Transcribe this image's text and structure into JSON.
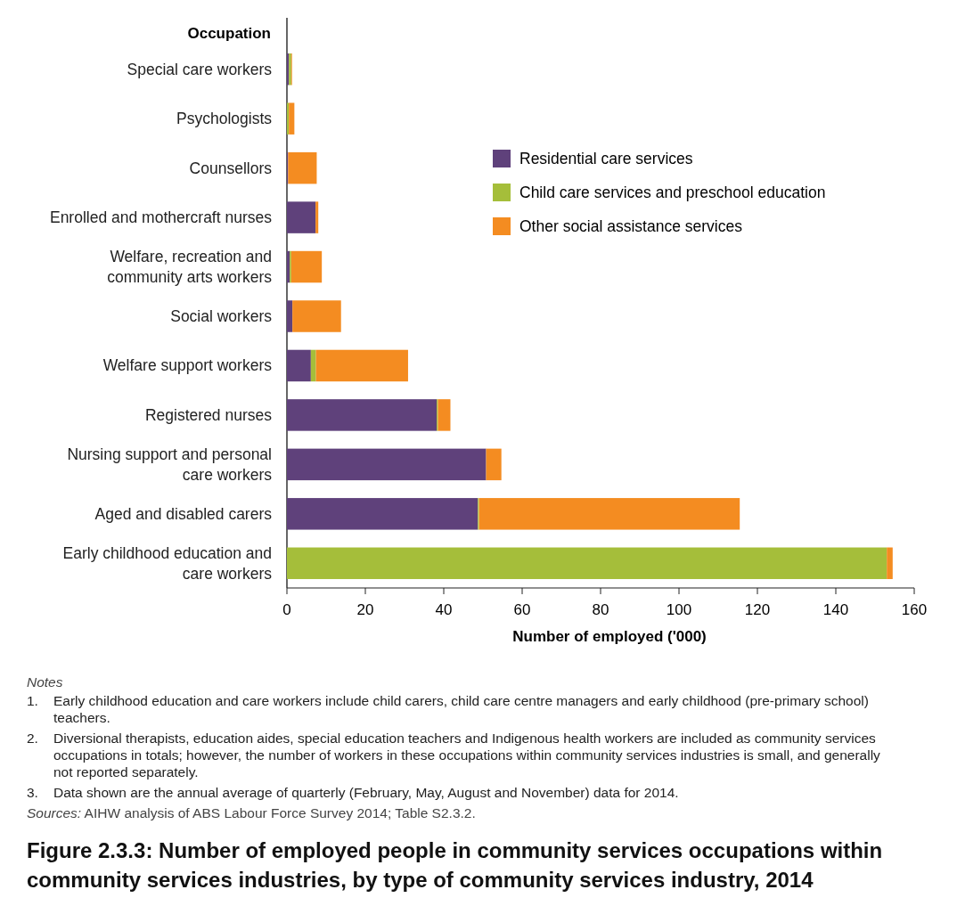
{
  "chart_data": {
    "type": "bar",
    "orientation": "horizontal",
    "stacked": true,
    "title": "Figure 2.3.3: Number of employed people in community services occupations within community services industries, by type of community services industry, 2014",
    "ylabel": "Occupation",
    "xlabel": "Number of employed ('000)",
    "categories": [
      "Special care workers",
      "Psychologists",
      "Counsellors",
      "Enrolled and mothercraft nurses",
      "Welfare, recreation and community arts workers",
      "Social workers",
      "Welfare support workers",
      "Registered nurses",
      "Nursing support and personal care workers",
      "Aged and disabled carers",
      "Early childhood education and care workers"
    ],
    "series": [
      {
        "name": "Residential care services",
        "color": "#5f417b",
        "values": [
          0.5,
          null,
          0.3,
          7.3,
          0.7,
          1.4,
          6.1,
          38.2,
          50.8,
          48.7,
          0
        ]
      },
      {
        "name": "Child care services and preschool education",
        "color": "#a5be3a",
        "values": [
          0.6,
          0.5,
          0,
          0,
          0.4,
          0,
          1.3,
          0.3,
          0,
          0.3,
          153
        ]
      },
      {
        "name": "Other social assistance services",
        "color": "#f48c21",
        "values": [
          0.2,
          1.4,
          7.3,
          0.7,
          7.8,
          12.4,
          23.5,
          3.2,
          3.9,
          66.5,
          1.5
        ]
      }
    ],
    "xlim": [
      0,
      160
    ],
    "xticks": [
      0,
      20,
      40,
      60,
      80,
      100,
      120,
      140,
      160
    ],
    "grid": false,
    "legend": "top right",
    "annotations": [
      "Notes",
      "1. Early childhood education and care workers include child carers, child care centre managers and early childhood (pre-primary school) teachers.",
      "2. Diversional therapists, education aides, special education teachers and Indigenous health workers are included as community services occupations in totals; however, the number of workers in these occupations within community services industries is small, and generally not reported separately.",
      "3. Data shown are the annual average of quarterly (February, May, August and November) data for 2014.",
      "Sources: AIHW analysis of ABS Labour Force Survey 2014; Table S2.3.2."
    ]
  }
}
